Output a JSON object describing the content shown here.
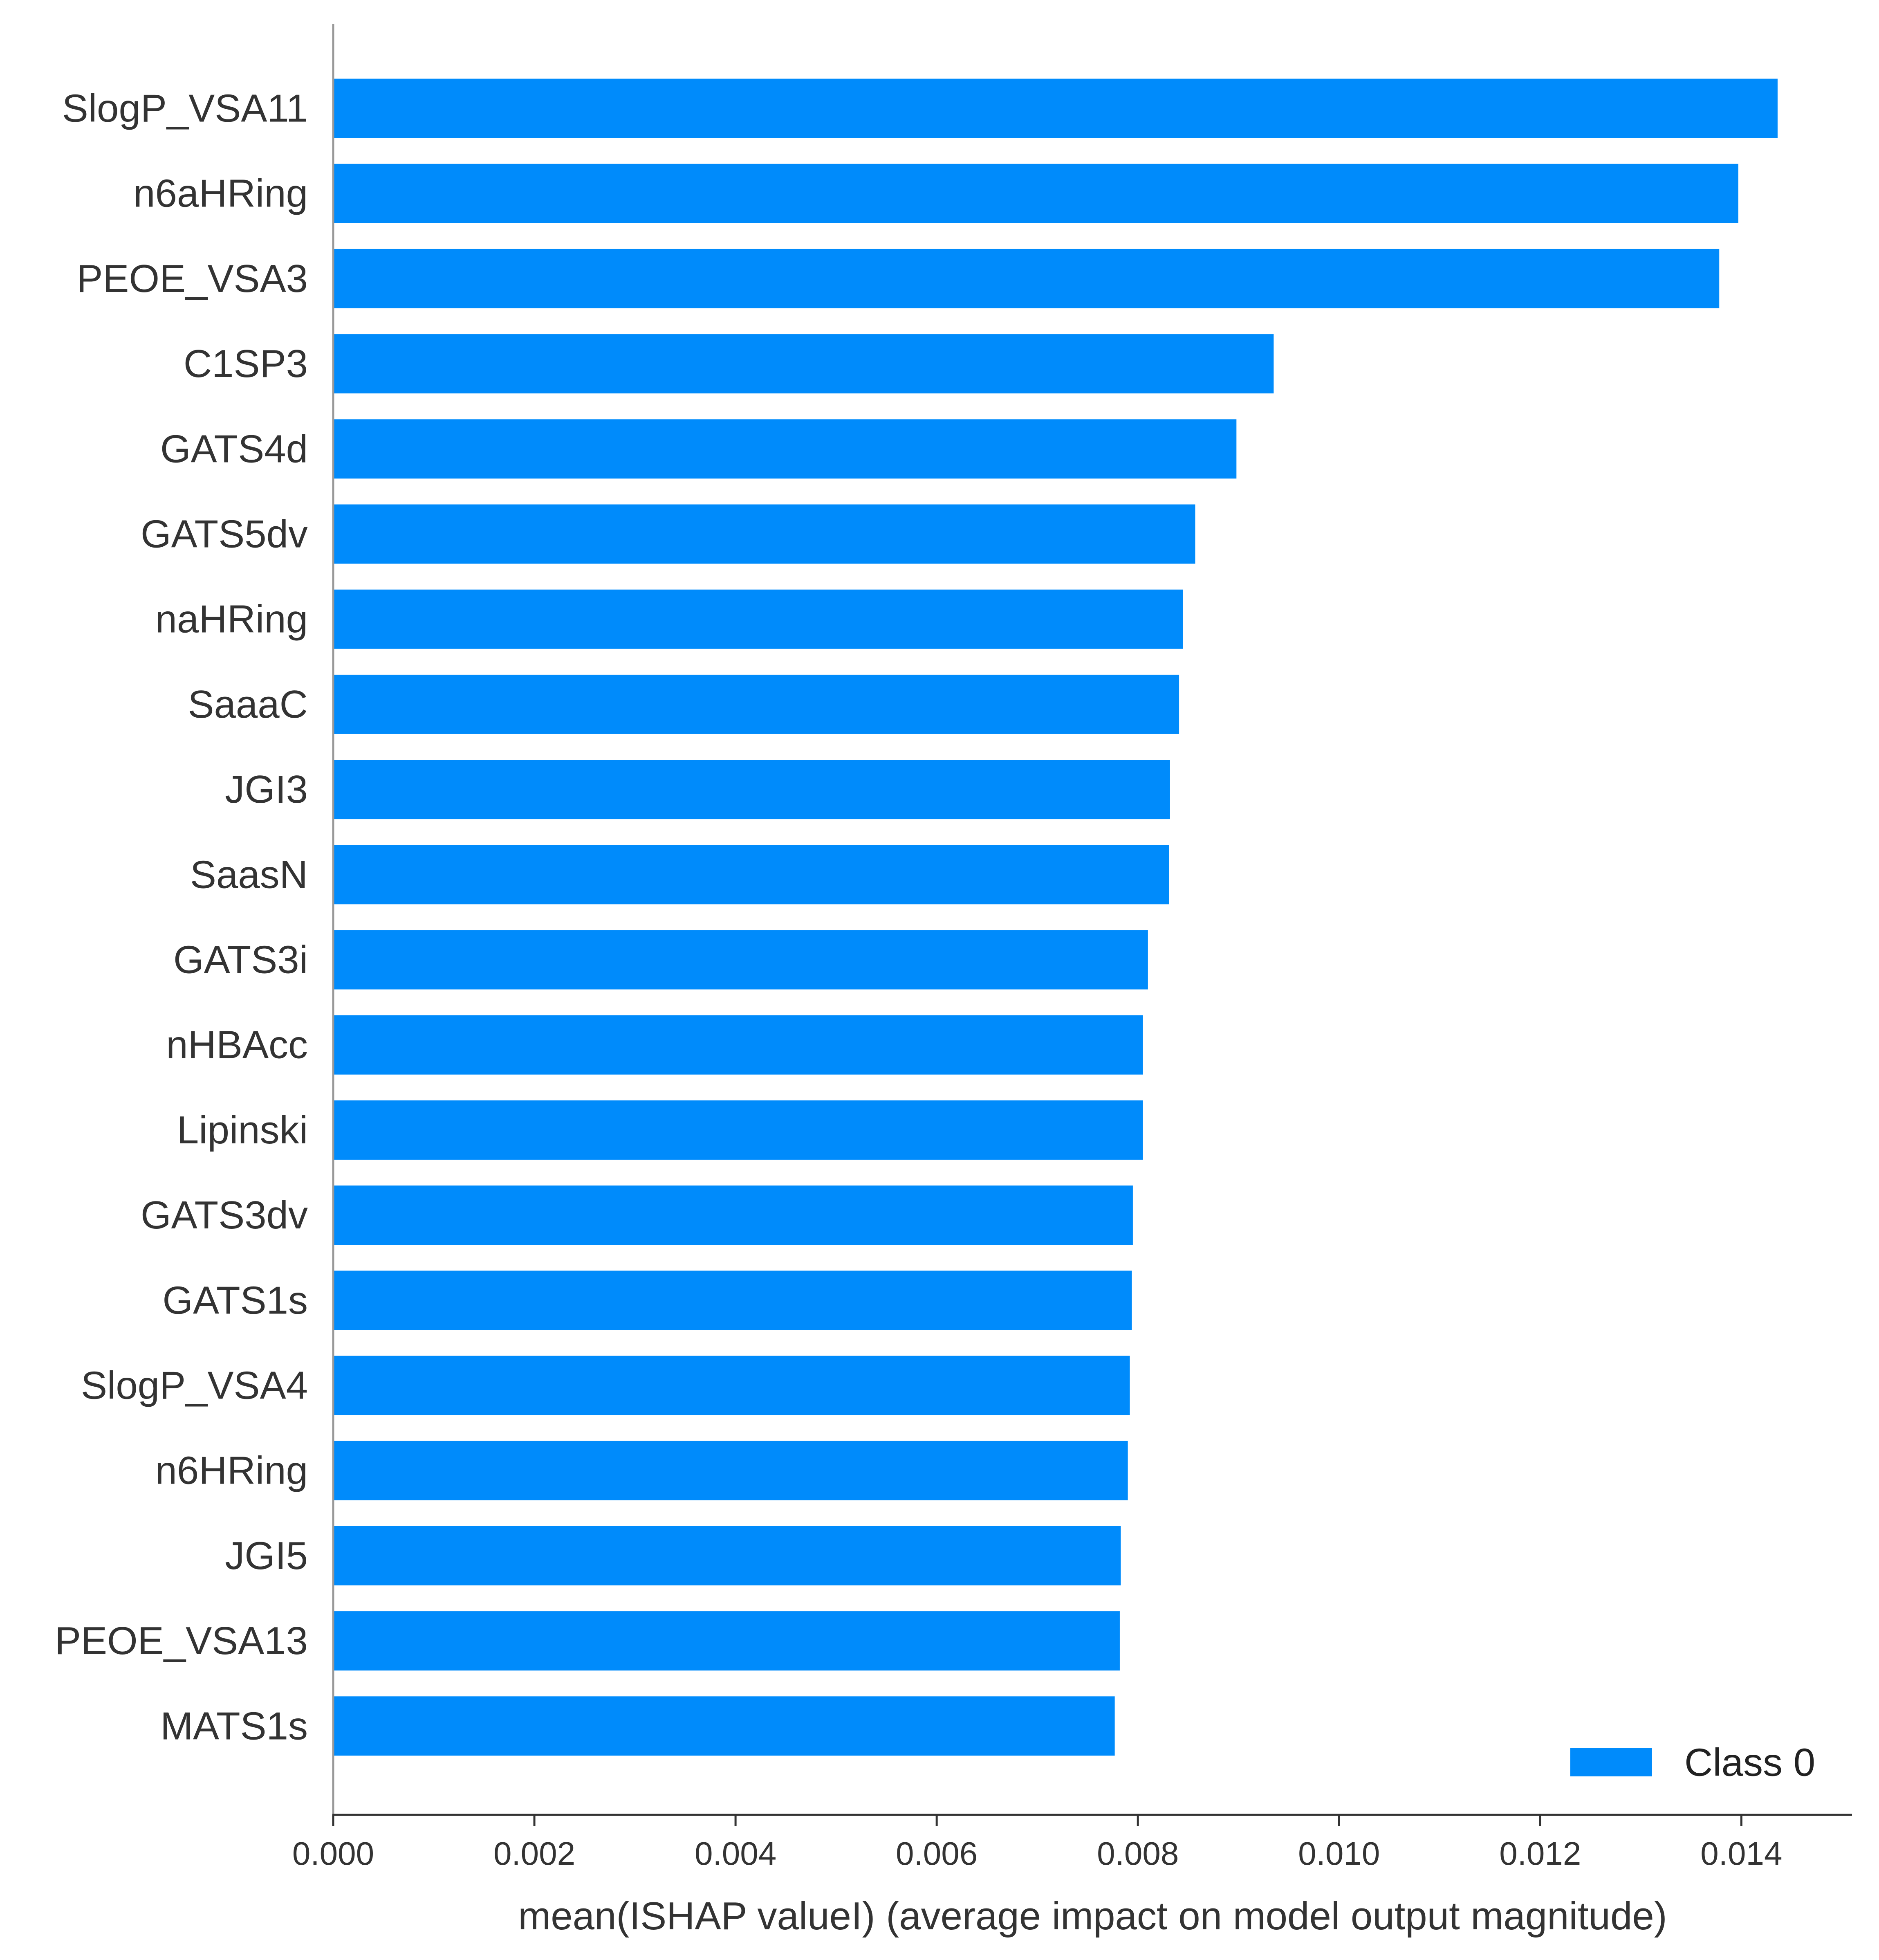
{
  "chart_data": {
    "type": "bar",
    "orientation": "horizontal",
    "categories": [
      "SlogP_VSA11",
      "n6aHRing",
      "PEOE_VSA3",
      "C1SP3",
      "GATS4d",
      "GATS5dv",
      "naHRing",
      "SaaaC",
      "JGI3",
      "SaasN",
      "GATS3i",
      "nHBAcc",
      "Lipinski",
      "GATS3dv",
      "GATS1s",
      "SlogP_VSA4",
      "n6HRing",
      "JGI5",
      "PEOE_VSA13",
      "MATS1s"
    ],
    "series": [
      {
        "name": "Class 0",
        "color": "#008bfb",
        "values": [
          0.01436,
          0.01397,
          0.01378,
          0.00935,
          0.00898,
          0.00857,
          0.00845,
          0.00841,
          0.00832,
          0.00831,
          0.0081,
          0.00805,
          0.00805,
          0.00795,
          0.00794,
          0.00792,
          0.0079,
          0.00783,
          0.00782,
          0.00777
        ]
      }
    ],
    "xlabel": "mean(ISHAP valueI) (average impact on model output magnitude)",
    "ylabel": "",
    "xlim": [
      0,
      0.0151
    ],
    "xticks": [
      "0.000",
      "0.002",
      "0.004",
      "0.006",
      "0.008",
      "0.010",
      "0.012",
      "0.014"
    ],
    "xtick_values": [
      0,
      0.002,
      0.004,
      0.006,
      0.008,
      0.01,
      0.012,
      0.014
    ],
    "grid": false,
    "legend": {
      "position": "bottom-right",
      "entries": [
        "Class 0"
      ]
    },
    "text_color": "#333333",
    "axis_color": "#333333"
  }
}
